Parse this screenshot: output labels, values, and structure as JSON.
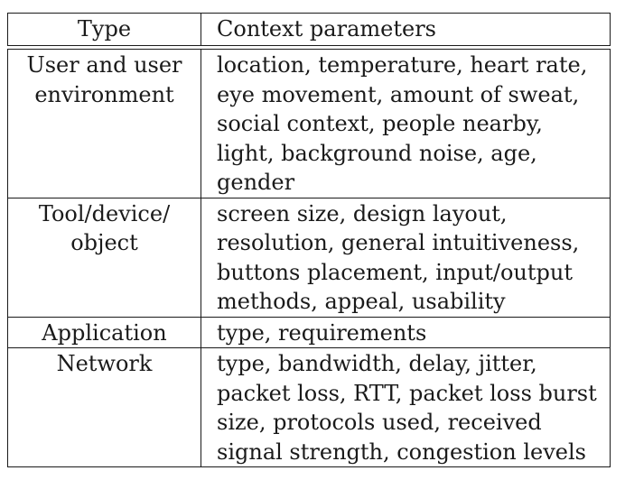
{
  "table": {
    "headers": {
      "type": "Type",
      "context": "Context parameters"
    },
    "rows": [
      {
        "type_lines": [
          "User and user",
          "environment"
        ],
        "context_lines": [
          "location, temperature, heart rate,",
          "eye movement, amount of sweat,",
          "social context, people nearby,",
          "light, background noise, age,",
          "gender"
        ]
      },
      {
        "type_lines": [
          "Tool/device/",
          "object"
        ],
        "context_lines": [
          "screen size, design layout,",
          "resolution, general intuitiveness,",
          "buttons placement, input/output",
          "methods, appeal, usability"
        ]
      },
      {
        "type_lines": [
          "Application"
        ],
        "context_lines": [
          "type, requirements"
        ]
      },
      {
        "type_lines": [
          "Network"
        ],
        "context_lines": [
          "type, bandwidth, delay, jitter,",
          "packet loss, RTT, packet loss burst",
          "size, protocols used, received",
          "signal strength, congestion levels"
        ]
      }
    ]
  }
}
